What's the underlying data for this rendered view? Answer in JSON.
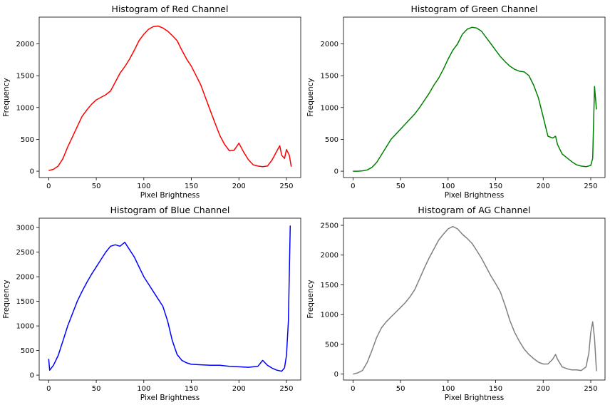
{
  "chart_data": [
    {
      "type": "line",
      "title": "Histogram of Red Channel",
      "xlabel": "Pixel Brightness",
      "ylabel": "Frequency",
      "xlim": [
        -10,
        265
      ],
      "ylim": [
        -100,
        2420
      ],
      "xticks": [
        0,
        50,
        100,
        150,
        200,
        250
      ],
      "yticks": [
        0,
        500,
        1000,
        1500,
        2000
      ],
      "color": "#ff0000",
      "series": [
        {
          "points": [
            [
              0,
              10
            ],
            [
              5,
              30
            ],
            [
              10,
              80
            ],
            [
              15,
              200
            ],
            [
              20,
              380
            ],
            [
              25,
              540
            ],
            [
              30,
              700
            ],
            [
              35,
              860
            ],
            [
              40,
              960
            ],
            [
              45,
              1050
            ],
            [
              50,
              1120
            ],
            [
              55,
              1160
            ],
            [
              60,
              1200
            ],
            [
              65,
              1260
            ],
            [
              70,
              1400
            ],
            [
              75,
              1540
            ],
            [
              80,
              1640
            ],
            [
              85,
              1760
            ],
            [
              90,
              1900
            ],
            [
              95,
              2050
            ],
            [
              100,
              2150
            ],
            [
              105,
              2230
            ],
            [
              110,
              2270
            ],
            [
              115,
              2280
            ],
            [
              120,
              2250
            ],
            [
              125,
              2200
            ],
            [
              130,
              2130
            ],
            [
              135,
              2050
            ],
            [
              140,
              1900
            ],
            [
              145,
              1760
            ],
            [
              150,
              1650
            ],
            [
              155,
              1500
            ],
            [
              160,
              1350
            ],
            [
              165,
              1150
            ],
            [
              170,
              950
            ],
            [
              175,
              750
            ],
            [
              180,
              560
            ],
            [
              185,
              420
            ],
            [
              190,
              320
            ],
            [
              195,
              330
            ],
            [
              200,
              440
            ],
            [
              205,
              300
            ],
            [
              210,
              180
            ],
            [
              215,
              100
            ],
            [
              220,
              80
            ],
            [
              225,
              70
            ],
            [
              230,
              80
            ],
            [
              235,
              180
            ],
            [
              240,
              320
            ],
            [
              243,
              400
            ],
            [
              245,
              250
            ],
            [
              248,
              200
            ],
            [
              250,
              340
            ],
            [
              253,
              250
            ],
            [
              255,
              70
            ]
          ]
        }
      ]
    },
    {
      "type": "line",
      "title": "Histogram of Green Channel",
      "xlabel": "Pixel Brightness",
      "ylabel": "Frequency",
      "xlim": [
        -10,
        265
      ],
      "ylim": [
        -100,
        2420
      ],
      "xticks": [
        0,
        50,
        100,
        150,
        200,
        250
      ],
      "yticks": [
        0,
        500,
        1000,
        1500,
        2000
      ],
      "color": "#008000",
      "series": [
        {
          "points": [
            [
              0,
              0
            ],
            [
              5,
              0
            ],
            [
              10,
              5
            ],
            [
              15,
              20
            ],
            [
              20,
              60
            ],
            [
              25,
              140
            ],
            [
              30,
              260
            ],
            [
              35,
              380
            ],
            [
              40,
              500
            ],
            [
              45,
              580
            ],
            [
              50,
              660
            ],
            [
              55,
              740
            ],
            [
              60,
              820
            ],
            [
              65,
              900
            ],
            [
              70,
              1000
            ],
            [
              75,
              1110
            ],
            [
              80,
              1220
            ],
            [
              85,
              1350
            ],
            [
              90,
              1460
            ],
            [
              95,
              1600
            ],
            [
              100,
              1760
            ],
            [
              105,
              1900
            ],
            [
              110,
              2000
            ],
            [
              115,
              2150
            ],
            [
              120,
              2230
            ],
            [
              125,
              2260
            ],
            [
              130,
              2250
            ],
            [
              135,
              2200
            ],
            [
              140,
              2100
            ],
            [
              145,
              2000
            ],
            [
              150,
              1900
            ],
            [
              155,
              1800
            ],
            [
              160,
              1720
            ],
            [
              165,
              1650
            ],
            [
              170,
              1600
            ],
            [
              175,
              1570
            ],
            [
              180,
              1560
            ],
            [
              185,
              1500
            ],
            [
              190,
              1350
            ],
            [
              195,
              1150
            ],
            [
              200,
              850
            ],
            [
              205,
              550
            ],
            [
              210,
              520
            ],
            [
              213,
              550
            ],
            [
              215,
              420
            ],
            [
              220,
              270
            ],
            [
              225,
              210
            ],
            [
              230,
              150
            ],
            [
              235,
              100
            ],
            [
              240,
              80
            ],
            [
              245,
              70
            ],
            [
              250,
              90
            ],
            [
              252,
              200
            ],
            [
              254,
              1330
            ],
            [
              256,
              970
            ]
          ]
        }
      ]
    },
    {
      "type": "line",
      "title": "Histogram of Blue Channel",
      "xlabel": "Pixel Brightness",
      "ylabel": "Frequency",
      "xlim": [
        -10,
        265
      ],
      "ylim": [
        -100,
        3190
      ],
      "xticks": [
        0,
        50,
        100,
        150,
        200,
        250
      ],
      "yticks": [
        0,
        500,
        1000,
        1500,
        2000,
        2500,
        3000
      ],
      "color": "#0000ff",
      "series": [
        {
          "points": [
            [
              0,
              330
            ],
            [
              1,
              100
            ],
            [
              5,
              200
            ],
            [
              10,
              400
            ],
            [
              15,
              700
            ],
            [
              20,
              1000
            ],
            [
              25,
              1250
            ],
            [
              30,
              1500
            ],
            [
              35,
              1700
            ],
            [
              40,
              1880
            ],
            [
              45,
              2050
            ],
            [
              50,
              2200
            ],
            [
              55,
              2350
            ],
            [
              60,
              2500
            ],
            [
              65,
              2620
            ],
            [
              70,
              2650
            ],
            [
              75,
              2620
            ],
            [
              80,
              2700
            ],
            [
              85,
              2550
            ],
            [
              90,
              2400
            ],
            [
              95,
              2200
            ],
            [
              100,
              2000
            ],
            [
              105,
              1850
            ],
            [
              110,
              1700
            ],
            [
              115,
              1550
            ],
            [
              120,
              1400
            ],
            [
              125,
              1100
            ],
            [
              130,
              700
            ],
            [
              135,
              420
            ],
            [
              140,
              300
            ],
            [
              145,
              250
            ],
            [
              150,
              220
            ],
            [
              160,
              210
            ],
            [
              170,
              200
            ],
            [
              180,
              200
            ],
            [
              190,
              180
            ],
            [
              200,
              170
            ],
            [
              210,
              160
            ],
            [
              220,
              180
            ],
            [
              225,
              300
            ],
            [
              230,
              200
            ],
            [
              235,
              140
            ],
            [
              240,
              100
            ],
            [
              245,
              80
            ],
            [
              248,
              150
            ],
            [
              250,
              400
            ],
            [
              252,
              1100
            ],
            [
              254,
              3040
            ]
          ]
        }
      ]
    },
    {
      "type": "line",
      "title": "Histogram of AG Channel",
      "xlabel": "Pixel Brightness",
      "ylabel": "Frequency",
      "xlim": [
        -10,
        265
      ],
      "ylim": [
        -100,
        2620
      ],
      "xticks": [
        0,
        50,
        100,
        150,
        200,
        250
      ],
      "yticks": [
        0,
        500,
        1000,
        1500,
        2000,
        2500
      ],
      "color": "#808080",
      "series": [
        {
          "points": [
            [
              0,
              0
            ],
            [
              5,
              20
            ],
            [
              10,
              60
            ],
            [
              15,
              200
            ],
            [
              20,
              400
            ],
            [
              25,
              620
            ],
            [
              30,
              780
            ],
            [
              35,
              880
            ],
            [
              40,
              960
            ],
            [
              45,
              1040
            ],
            [
              50,
              1120
            ],
            [
              55,
              1200
            ],
            [
              60,
              1300
            ],
            [
              65,
              1420
            ],
            [
              70,
              1600
            ],
            [
              75,
              1780
            ],
            [
              80,
              1950
            ],
            [
              85,
              2100
            ],
            [
              90,
              2250
            ],
            [
              95,
              2350
            ],
            [
              100,
              2440
            ],
            [
              105,
              2480
            ],
            [
              110,
              2440
            ],
            [
              115,
              2350
            ],
            [
              120,
              2280
            ],
            [
              125,
              2200
            ],
            [
              130,
              2080
            ],
            [
              135,
              1950
            ],
            [
              140,
              1800
            ],
            [
              145,
              1650
            ],
            [
              150,
              1520
            ],
            [
              155,
              1380
            ],
            [
              160,
              1150
            ],
            [
              165,
              900
            ],
            [
              170,
              700
            ],
            [
              175,
              550
            ],
            [
              180,
              420
            ],
            [
              185,
              330
            ],
            [
              190,
              260
            ],
            [
              195,
              200
            ],
            [
              200,
              170
            ],
            [
              205,
              170
            ],
            [
              210,
              250
            ],
            [
              213,
              330
            ],
            [
              215,
              250
            ],
            [
              220,
              120
            ],
            [
              225,
              90
            ],
            [
              230,
              70
            ],
            [
              235,
              70
            ],
            [
              240,
              60
            ],
            [
              245,
              120
            ],
            [
              248,
              350
            ],
            [
              250,
              700
            ],
            [
              252,
              880
            ],
            [
              254,
              600
            ],
            [
              256,
              50
            ]
          ]
        }
      ]
    }
  ]
}
